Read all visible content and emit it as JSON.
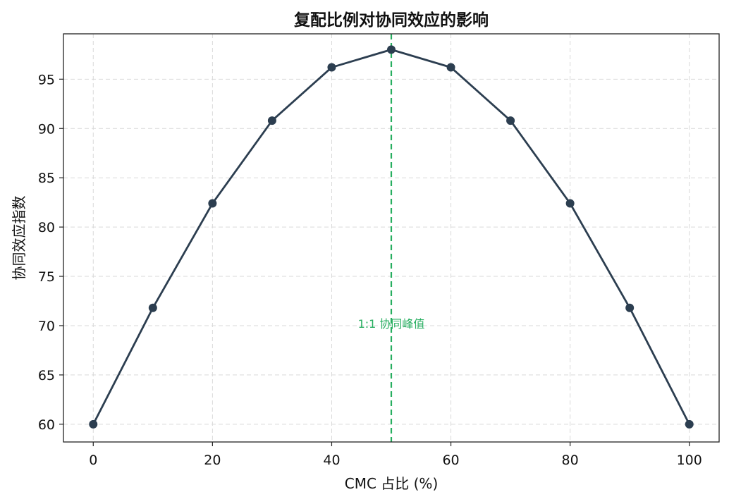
{
  "chart_data": {
    "type": "line",
    "title": "复配比例对协同效应的影响",
    "xlabel": "CMC 占比 (%)",
    "ylabel": "协同效应指数",
    "x": [
      0,
      10,
      20,
      30,
      40,
      50,
      60,
      70,
      80,
      90,
      100
    ],
    "series": [
      {
        "values": [
          60.0,
          71.8,
          82.4,
          90.8,
          96.2,
          98.0,
          96.2,
          90.8,
          82.4,
          71.8,
          60.0
        ]
      }
    ],
    "xlim": [
      -5,
      105
    ],
    "ylim": [
      58.2,
      99.6
    ],
    "xticks": [
      0,
      20,
      40,
      60,
      80,
      100
    ],
    "yticks": [
      60,
      65,
      70,
      75,
      80,
      85,
      90,
      95
    ],
    "grid": true,
    "line_color": "#2c3e50",
    "marker_color": "#2c3e50",
    "annotation": {
      "text": "1:1 协同峰值",
      "x": 50,
      "y": 70.2,
      "color": "#27ae60"
    },
    "vline": {
      "x": 50,
      "color": "#27ae60",
      "style": "dashed"
    }
  }
}
